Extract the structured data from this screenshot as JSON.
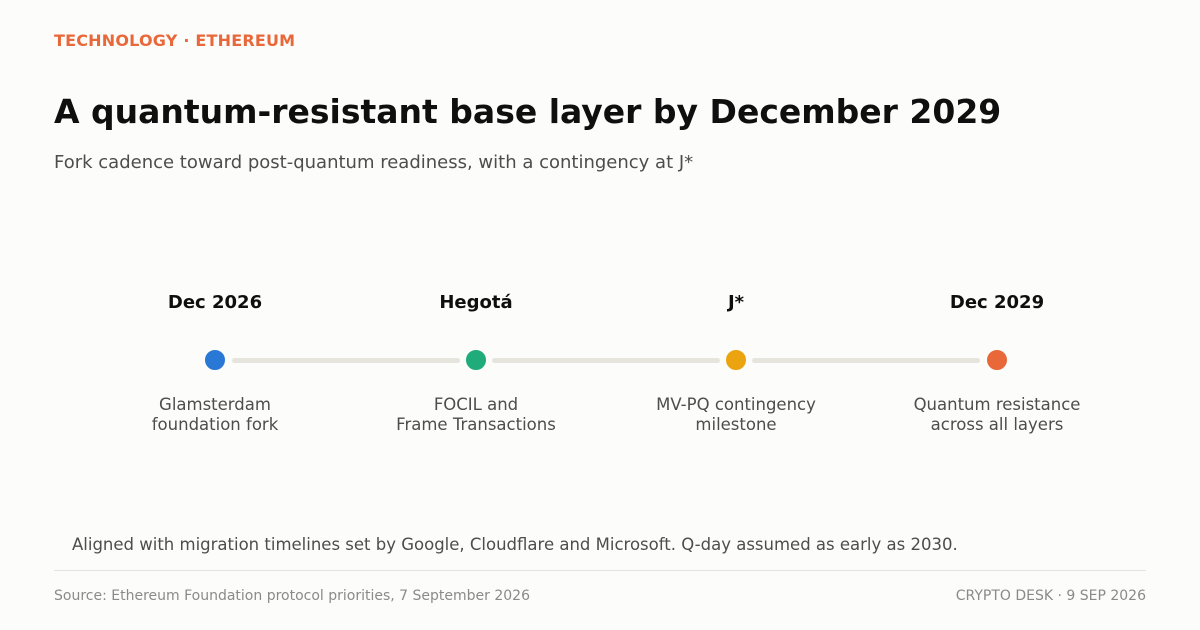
{
  "header": {
    "kicker": "TECHNOLOGY · ETHEREUM",
    "title": "A quantum-resistant base layer by December 2029",
    "subtitle": "Fork cadence toward post-quantum readiness, with a contingency at J*"
  },
  "timeline": {
    "milestones": [
      {
        "label": "Dec 2026",
        "description": "Glamsterdam\nfoundation fork",
        "color": "#2a78d6"
      },
      {
        "label": "Hegotá",
        "description": "FOCIL and\nFrame Transactions",
        "color": "#1fab7a"
      },
      {
        "label": "J*",
        "description": "MV-PQ contingency\nmilestone",
        "color": "#eba30f"
      },
      {
        "label": "Dec 2029",
        "description": "Quantum resistance\nacross all layers",
        "color": "#e8683a"
      }
    ]
  },
  "note": "Aligned with migration timelines set by Google, Cloudflare and Microsoft. Q-day assumed as early as 2030.",
  "footer": {
    "source": "Source: Ethereum Foundation protocol priorities, 7 September 2026",
    "desk": "CRYPTO DESK  ·  9 SEP 2026"
  },
  "colors": {
    "accent": "#e8683a",
    "track": "#e5e4dd"
  }
}
